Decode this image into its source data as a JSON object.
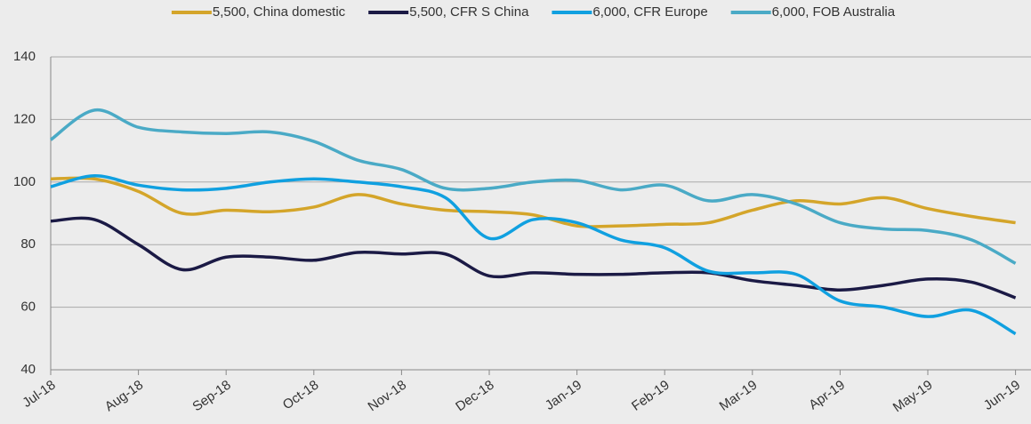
{
  "chart_data": {
    "type": "line",
    "categories": [
      "Jul-18",
      null,
      "Aug-18",
      null,
      "Sep-18",
      null,
      "Oct-18",
      null,
      "Nov-18",
      null,
      "Dec-18",
      null,
      "Jan-19",
      null,
      "Feb-19",
      null,
      "Mar-19",
      null,
      "Apr-19",
      null,
      "May-19",
      null,
      "Jun-19"
    ],
    "series": [
      {
        "name": "5,500, China domestic",
        "color": "#d4a52a",
        "values": [
          101,
          101,
          97,
          90,
          91,
          90.5,
          92,
          96,
          93,
          91,
          90.5,
          89.5,
          86,
          86,
          86.5,
          87,
          91,
          94,
          93,
          95,
          91.5,
          89,
          87
        ]
      },
      {
        "name": "5,500, CFR S China",
        "color": "#1b1a45",
        "values": [
          87.5,
          88,
          80,
          72,
          76,
          76,
          75,
          77.5,
          77,
          77,
          70,
          71,
          70.5,
          70.5,
          71,
          71,
          68.5,
          67,
          65.5,
          67,
          69,
          68,
          63
        ]
      },
      {
        "name": "6,000, CFR Europe",
        "color": "#10a0e0",
        "values": [
          98.5,
          102,
          99,
          97.5,
          98,
          100,
          101,
          100,
          98.5,
          95,
          82,
          88,
          87,
          81.5,
          79,
          71.5,
          71,
          70.5,
          62,
          60,
          57,
          59,
          51.5
        ]
      },
      {
        "name": "6,000, FOB Australia",
        "color": "#4aaac6",
        "values": [
          113.5,
          123,
          117.5,
          116,
          115.5,
          116,
          113,
          107,
          104,
          98,
          98,
          100,
          100.5,
          97.5,
          99,
          94,
          96,
          93,
          87,
          85,
          84.5,
          81.5,
          74
        ]
      }
    ],
    "ylim": [
      40,
      140
    ],
    "yticks": [
      40,
      60,
      80,
      100,
      120,
      140
    ],
    "grid": true
  }
}
